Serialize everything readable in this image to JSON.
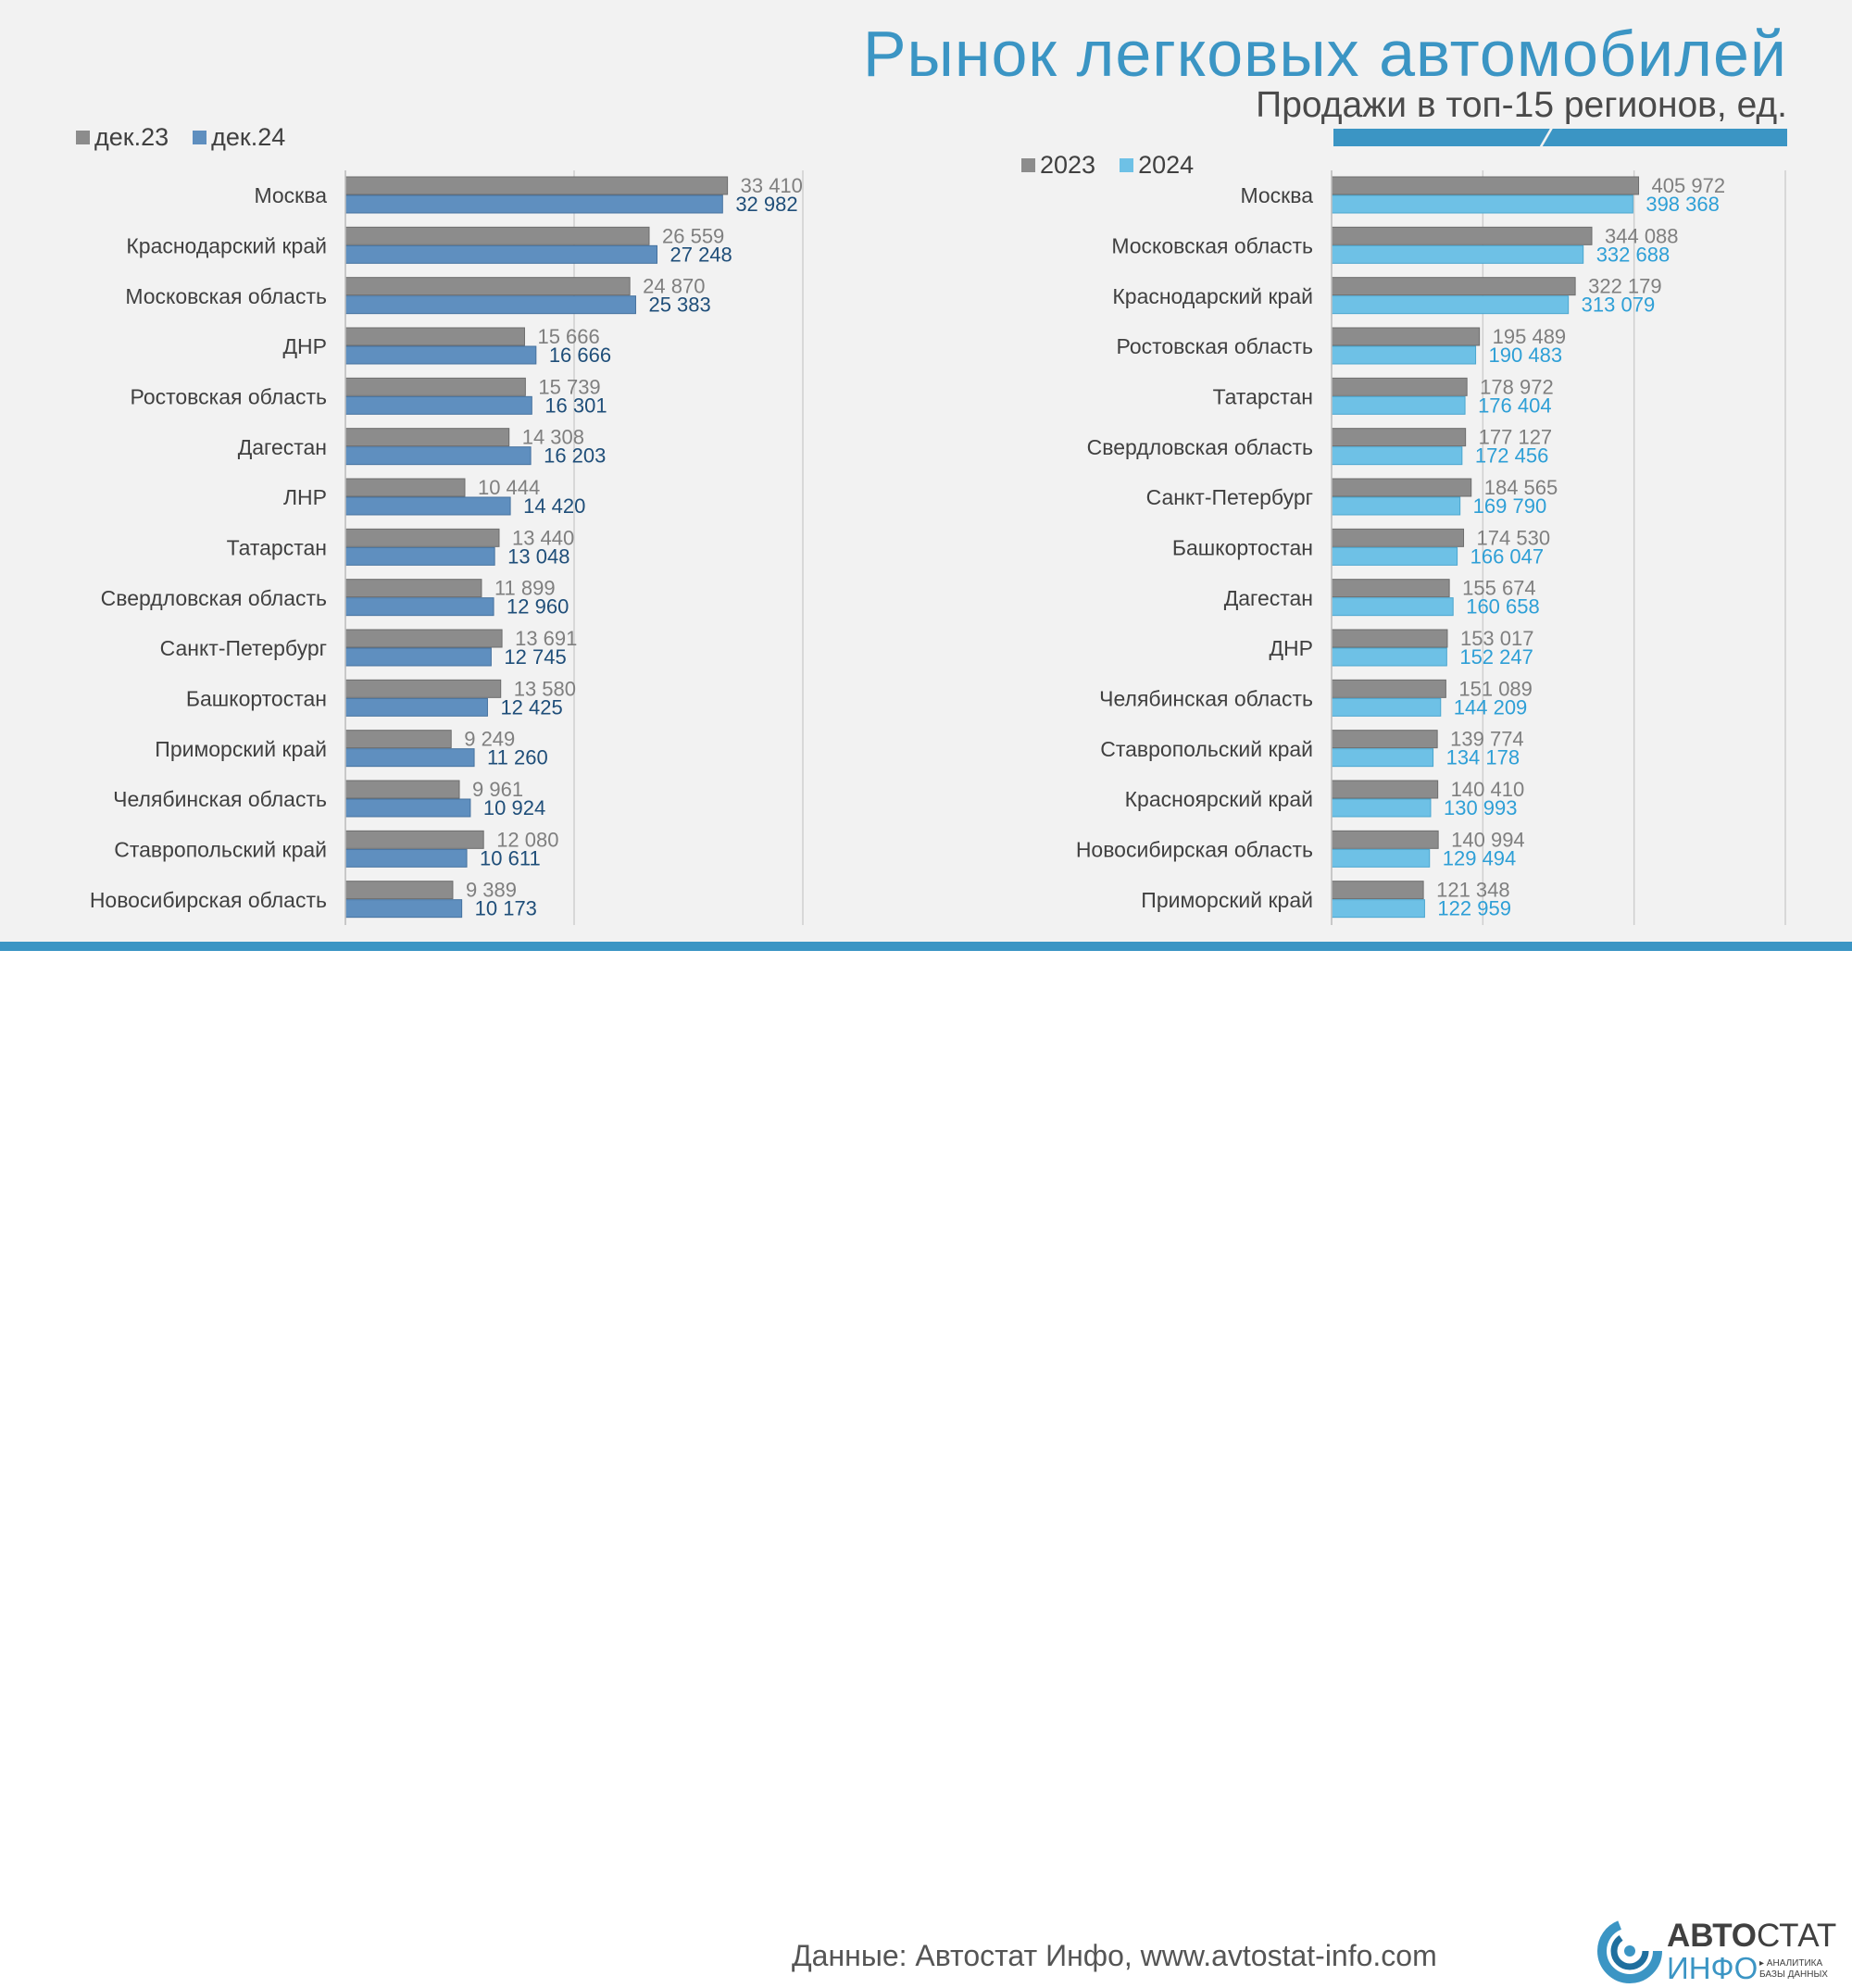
{
  "title": "Рынок легковых автомобилей",
  "subtitle": "Продажи в топ-15 регионов, ед.",
  "source": "Данные: Автостат Инфо, www.avtostat-info.com",
  "logo": {
    "word_bold": "АВТО",
    "word_rest": "СТАТ",
    "word2": "ИНФО",
    "tagline_1": "▸ АНАЛИТИКА",
    "tagline_2": "БАЗЫ ДАННЫХ"
  },
  "colors": {
    "accent": "#3b95c4",
    "grey": "#8c8c8c",
    "blue_dark": "#5f8fbf",
    "blue_light": "#6ec1e6",
    "label_dark": "#1f4e79",
    "label_light": "#2e9fd6"
  },
  "chart_data": [
    {
      "type": "bar",
      "orientation": "horizontal",
      "legend_position": "top-left",
      "grid": true,
      "xlim": [
        0,
        40000
      ],
      "categories": [
        "Москва",
        "Краснодарский край",
        "Московская область",
        "ДНР",
        "Ростовская область",
        "Дагестан",
        "ЛНР",
        "Татарстан",
        "Свердловская область",
        "Санкт-Петербург",
        "Башкортостан",
        "Приморский край",
        "Челябинская область",
        "Ставропольский край",
        "Новосибирская область"
      ],
      "series": [
        {
          "name": "дек.23",
          "values": [
            33410,
            26559,
            24870,
            15666,
            15739,
            14308,
            10444,
            13440,
            11899,
            13691,
            13580,
            9249,
            9961,
            12080,
            9389
          ],
          "labels": [
            "33 410",
            "26 559",
            "24 870",
            "15 666",
            "15 739",
            "14 308",
            "10 444",
            "13 440",
            "11 899",
            "13 691",
            "13 580",
            "9 249",
            "9 961",
            "12 080",
            "9 389"
          ]
        },
        {
          "name": "дек.24",
          "values": [
            32982,
            27248,
            25383,
            16666,
            16301,
            16203,
            14420,
            13048,
            12960,
            12745,
            12425,
            11260,
            10924,
            10611,
            10173
          ],
          "labels": [
            "32 982",
            "27 248",
            "25 383",
            "16 666",
            "16 301",
            "16 203",
            "14 420",
            "13 048",
            "12 960",
            "12 745",
            "12 425",
            "11 260",
            "10 924",
            "10 611",
            "10 173"
          ]
        }
      ]
    },
    {
      "type": "bar",
      "orientation": "horizontal",
      "legend_position": "top-left",
      "grid": true,
      "xlim": [
        0,
        600000
      ],
      "categories": [
        "Москва",
        "Московская область",
        "Краснодарский край",
        "Ростовская область",
        "Татарстан",
        "Свердловская область",
        "Санкт-Петербург",
        "Башкортостан",
        "Дагестан",
        "ДНР",
        "Челябинская область",
        "Ставропольский край",
        "Красноярский край",
        "Новосибирская область",
        "Приморский край"
      ],
      "series": [
        {
          "name": "2023",
          "values": [
            405972,
            344088,
            322179,
            195489,
            178972,
            177127,
            184565,
            174530,
            155674,
            153017,
            151089,
            139774,
            140410,
            140994,
            121348
          ],
          "labels": [
            "405 972",
            "344 088",
            "322 179",
            "195 489",
            "178 972",
            "177 127",
            "184 565",
            "174 530",
            "155 674",
            "153 017",
            "151 089",
            "139 774",
            "140 410",
            "140 994",
            "121 348"
          ]
        },
        {
          "name": "2024",
          "values": [
            398368,
            332688,
            313079,
            190483,
            176404,
            172456,
            169790,
            166047,
            160658,
            152247,
            144209,
            134178,
            130993,
            129494,
            122959
          ],
          "labels": [
            "398 368",
            "332 688",
            "313 079",
            "190 483",
            "176 404",
            "172 456",
            "169 790",
            "166 047",
            "160 658",
            "152 247",
            "144 209",
            "134 178",
            "130 993",
            "129 494",
            "122 959"
          ]
        }
      ]
    }
  ]
}
